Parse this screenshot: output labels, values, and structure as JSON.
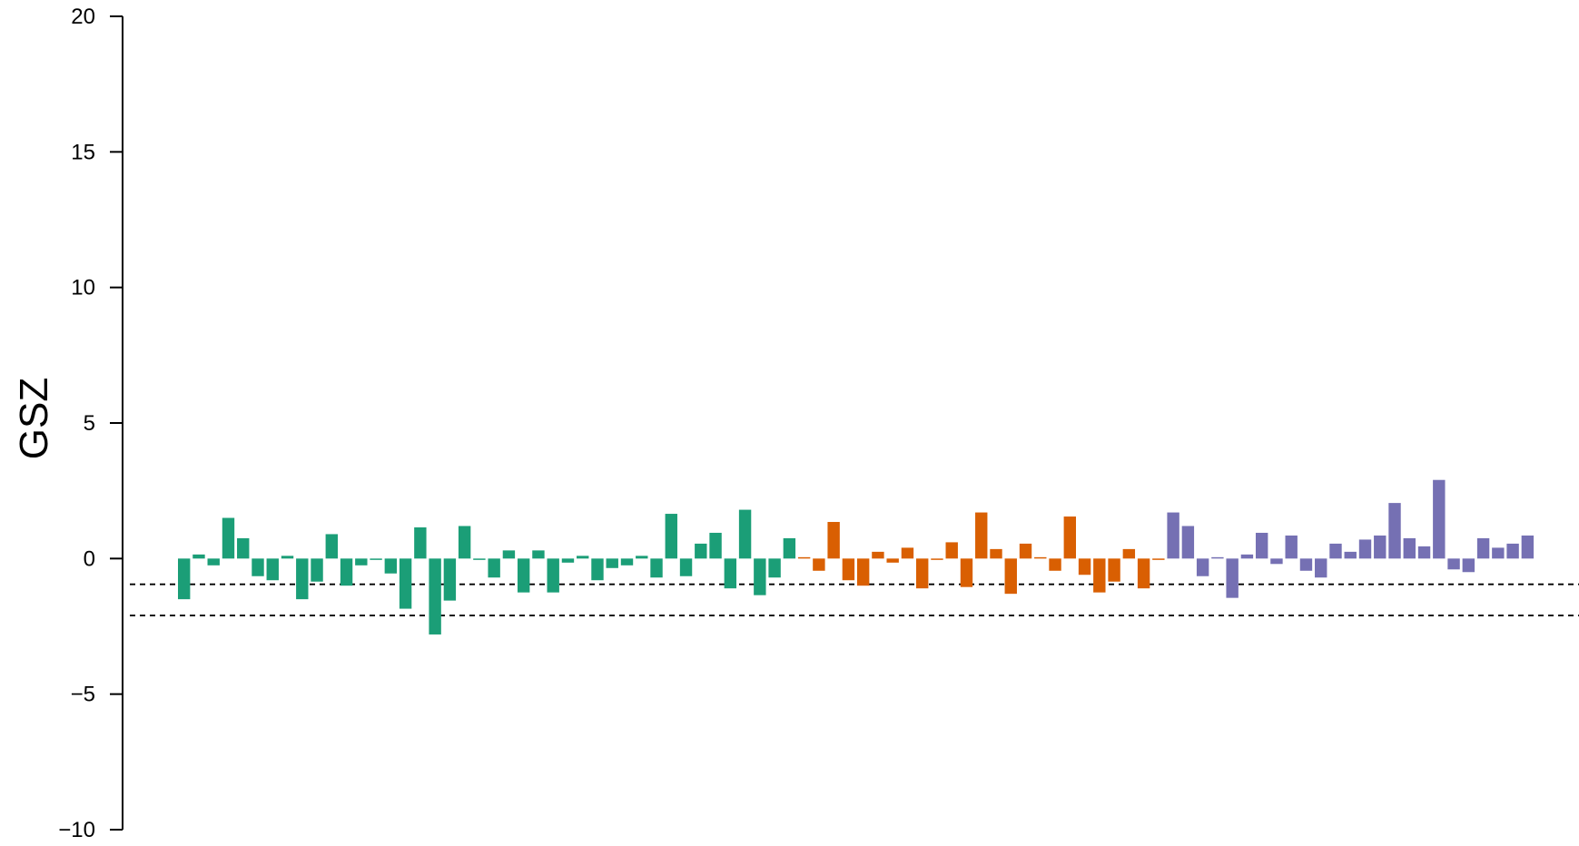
{
  "chart_data": {
    "type": "bar",
    "title": "",
    "xlabel": "",
    "ylabel": "GSZ",
    "ylim": [
      -10,
      20
    ],
    "yticks": [
      -10,
      -5,
      0,
      5,
      10,
      15,
      20
    ],
    "ytick_labels": [
      "−10",
      "−5",
      "0",
      "5",
      "10",
      "15",
      "20"
    ],
    "reference_lines": [
      -0.95,
      -2.1
    ],
    "grid": false,
    "legend": "none",
    "series": [
      {
        "color": "#1b9e77",
        "values": [
          -1.5,
          0.15,
          -0.25,
          1.5,
          0.75,
          -0.65,
          -0.8,
          0.1,
          -1.5,
          -0.85,
          0.9,
          -1.0,
          -0.25,
          -0.05,
          -0.55,
          -1.85,
          1.15,
          -2.8,
          -1.55,
          1.2,
          -0.05,
          -0.7,
          0.3,
          -1.25,
          0.3,
          -1.25,
          -0.15,
          0.1,
          -0.8,
          -0.35,
          -0.25,
          0.1,
          -0.7,
          1.65,
          -0.65,
          0.55,
          0.95,
          -1.1,
          1.8,
          -1.35,
          -0.7,
          0.75
        ]
      },
      {
        "color": "#d95f02",
        "values": [
          0.05,
          -0.45,
          1.35,
          -0.8,
          -1.0,
          0.25,
          -0.15,
          0.4,
          -1.1,
          -0.05,
          0.6,
          -1.05,
          1.7,
          0.35,
          -1.3,
          0.55,
          0.05,
          -0.45,
          1.55,
          -0.6,
          -1.25,
          -0.85,
          0.35,
          -1.1,
          -0.05
        ]
      },
      {
        "color": "#7570b3",
        "values": [
          1.7,
          1.2,
          -0.65,
          0.05,
          -1.45,
          0.15,
          0.95,
          -0.2,
          0.85,
          -0.45,
          -0.7,
          0.55,
          0.25,
          0.7,
          0.85,
          2.05,
          0.75,
          0.45,
          2.9,
          -0.4,
          -0.5,
          0.75,
          0.4,
          0.55,
          0.85
        ]
      }
    ]
  }
}
